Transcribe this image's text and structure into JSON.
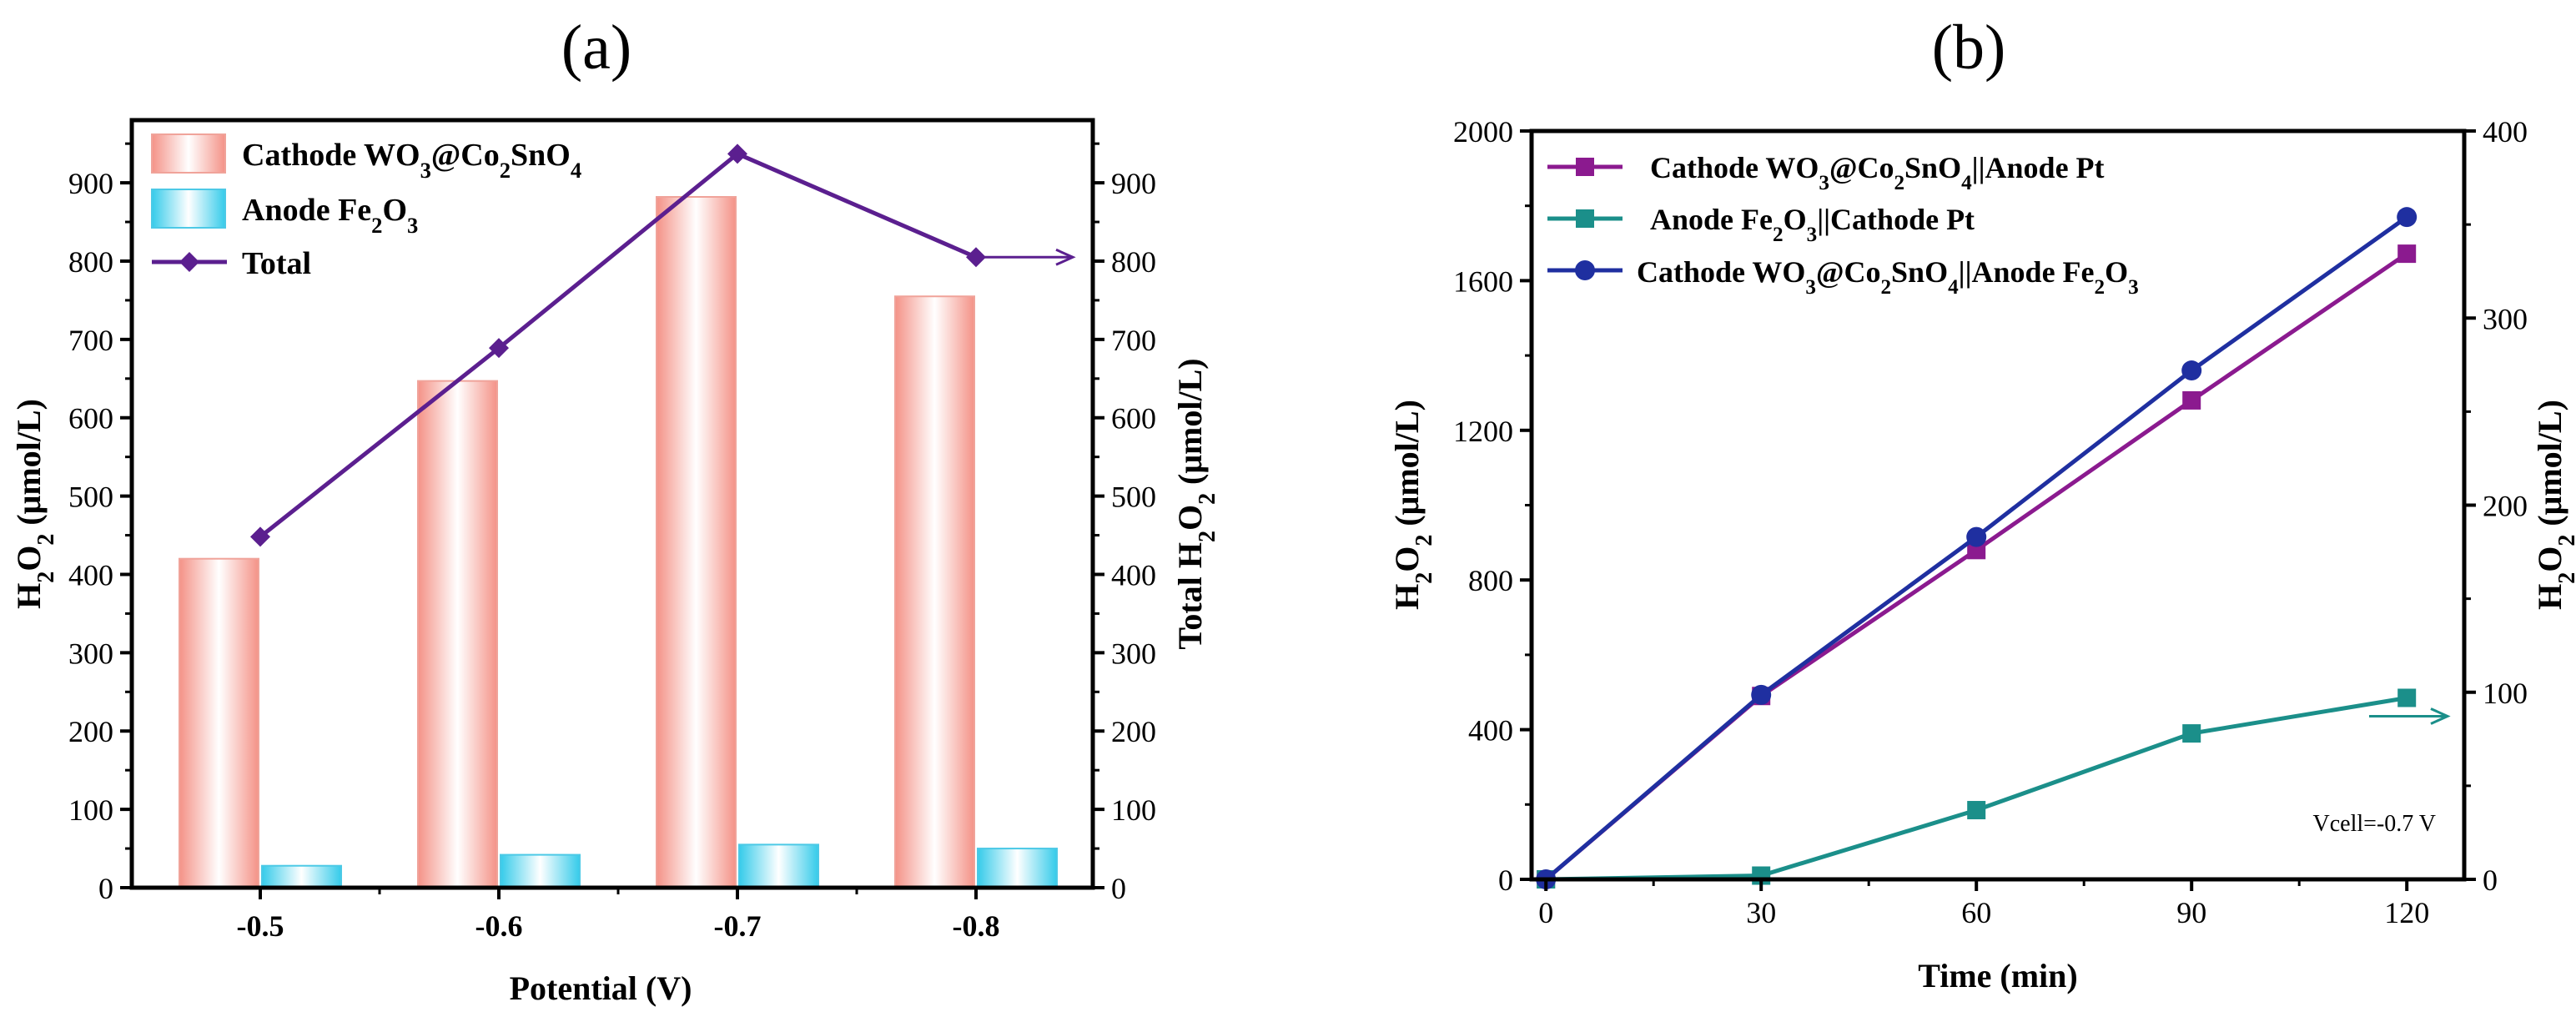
{
  "chart_data": [
    {
      "panel_label": "(a)",
      "type": "bar",
      "categories": [
        "-0.5",
        "-0.6",
        "-0.7",
        "-0.8"
      ],
      "xlabel": "Potential (V)",
      "ylabel": "H2O2 (μmol/L)",
      "ylabel_right": "Total H2O2 (μmol/L)",
      "ylim": [
        0,
        980
      ],
      "ylim_right": [
        0,
        980
      ],
      "yticks": [
        0,
        100,
        200,
        300,
        400,
        500,
        600,
        700,
        800,
        900
      ],
      "series": [
        {
          "name": "Cathode WO3@Co2SnO4",
          "kind": "bar",
          "color": "#f7a39a",
          "values": [
            420,
            647,
            882,
            755
          ]
        },
        {
          "name": "Anode Fe2O3",
          "kind": "bar",
          "color": "#55d6f0",
          "values": [
            28,
            42,
            55,
            50
          ]
        },
        {
          "name": "Total",
          "kind": "line",
          "axis": "right",
          "color": "#5b1f8f",
          "values": [
            448,
            689,
            937,
            805
          ]
        }
      ],
      "annotations": [
        {
          "type": "arrow",
          "points_to": "right-axis",
          "color": "#5b1f8f"
        }
      ]
    },
    {
      "panel_label": "(b)",
      "type": "line",
      "x": [
        0,
        30,
        60,
        90,
        120
      ],
      "xlabel": "Time (min)",
      "ylabel": "H2O2 (μmol/L)",
      "ylabel_right": "H2O2 (μmol/L)",
      "xlim": [
        -2,
        128
      ],
      "ylim": [
        0,
        2000
      ],
      "ylim_right": [
        0,
        400
      ],
      "xticks": [
        0,
        30,
        60,
        90,
        120
      ],
      "yticks": [
        0,
        400,
        800,
        1200,
        1600,
        2000
      ],
      "yticks_right": [
        0,
        100,
        200,
        300,
        400
      ],
      "series": [
        {
          "name": "Cathode WO3@Co2SnO4||Anode Pt",
          "marker": "square",
          "axis": "left",
          "color": "#8b1a8f",
          "values": [
            0,
            490,
            880,
            1280,
            1672
          ]
        },
        {
          "name": "Anode Fe2O3||Cathode Pt",
          "marker": "square",
          "axis": "right",
          "color": "#1b8f8a",
          "values": [
            0,
            2,
            37,
            78,
            97
          ]
        },
        {
          "name": "Cathode WO3@Co2SnO4||Anode Fe2O3",
          "marker": "circle",
          "axis": "left",
          "color": "#1f2fa0",
          "values": [
            0,
            493,
            915,
            1360,
            1770
          ]
        }
      ],
      "annotations": [
        {
          "type": "text",
          "text": "Vcell=-0.7 V"
        },
        {
          "type": "arrow",
          "points_to": "right-axis",
          "color": "#1b8f8a"
        }
      ]
    }
  ]
}
